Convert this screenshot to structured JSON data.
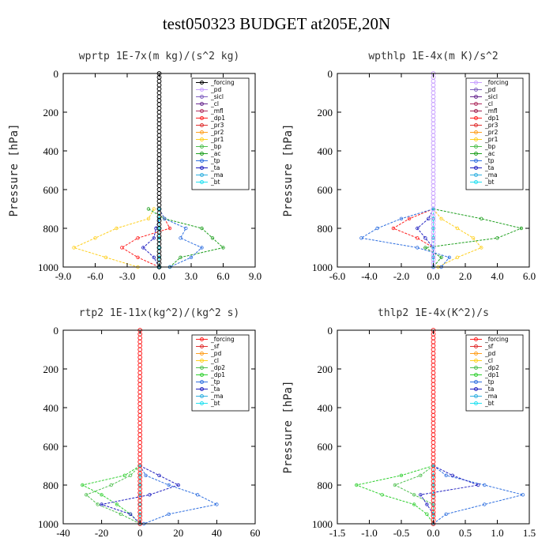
{
  "title": "test050323  BUDGET at205E,20N",
  "chart_data": [
    {
      "type": "line",
      "title": "wprtp  1E-7x(m kg)/(s^2 kg)",
      "ylabel": "Pressure [hPa]",
      "xlim": [
        -9,
        9
      ],
      "ylim": [
        1000,
        0
      ],
      "xticks": [
        -9,
        -6,
        -3,
        0,
        3,
        6,
        9
      ],
      "xtick_labels": [
        "-9.0",
        "-6.0",
        "-3.0",
        "0.0",
        "3.0",
        "6.0",
        "9.0"
      ],
      "yticks": [
        0,
        200,
        400,
        600,
        800,
        1000
      ],
      "grid": false,
      "legend_position": "top-right",
      "y": [
        700,
        750,
        800,
        850,
        900,
        950,
        1000
      ],
      "series": [
        {
          "name": "_forcing",
          "color": "#000000",
          "values": [
            0,
            0,
            0,
            0,
            0,
            0,
            0
          ]
        },
        {
          "name": "_pd",
          "color": "#c8a0ff",
          "values": [
            0,
            0,
            0,
            0,
            0,
            0,
            0
          ]
        },
        {
          "name": "_sicl",
          "color": "#8060c0",
          "values": [
            0,
            0,
            0,
            0,
            0,
            0,
            0
          ]
        },
        {
          "name": "_cl",
          "color": "#6a2a90",
          "values": [
            0,
            0,
            0,
            0,
            0,
            0,
            0
          ]
        },
        {
          "name": "_mfl",
          "color": "#b03060",
          "values": [
            0,
            0,
            0,
            0,
            0,
            0,
            0
          ]
        },
        {
          "name": "_dp1",
          "color": "#ff2020",
          "values": [
            0,
            0.5,
            1.0,
            -2.0,
            -3.5,
            -2.0,
            0
          ]
        },
        {
          "name": "_pr3",
          "color": "#e03030",
          "values": [
            0,
            0,
            0,
            0,
            0,
            0,
            0
          ]
        },
        {
          "name": "_pr2",
          "color": "#ffa020",
          "values": [
            0,
            0,
            0,
            0,
            0,
            0,
            0
          ]
        },
        {
          "name": "_pr1",
          "color": "#ffd020",
          "values": [
            -0.5,
            -1.0,
            -4.0,
            -6.0,
            -8.0,
            -5.0,
            -2.0
          ]
        },
        {
          "name": "_bp",
          "color": "#50c050",
          "values": [
            0,
            0,
            0,
            0,
            0,
            0,
            0
          ]
        },
        {
          "name": "_ac",
          "color": "#20a020",
          "values": [
            -1.0,
            0.5,
            4.0,
            5.0,
            6.0,
            2.0,
            1.0
          ]
        },
        {
          "name": "_tp",
          "color": "#3070e0",
          "values": [
            0,
            0.5,
            2.5,
            2.0,
            4.0,
            3.0,
            1.0
          ]
        },
        {
          "name": "_ta",
          "color": "#2020c0",
          "values": [
            0,
            0,
            -0.3,
            -0.5,
            -1.5,
            -0.5,
            0
          ]
        },
        {
          "name": "_ma",
          "color": "#30b0e0",
          "values": [
            0,
            0,
            0,
            0,
            0,
            0,
            0
          ]
        },
        {
          "name": "_bt",
          "color": "#20e0f0",
          "values": [
            0,
            0,
            0,
            0,
            0,
            0,
            0
          ]
        }
      ]
    },
    {
      "type": "line",
      "title": "wpthlp  1E-4x(m K)/s^2",
      "ylabel": "Pressure [hPa]",
      "xlim": [
        -6,
        6
      ],
      "ylim": [
        1000,
        0
      ],
      "xticks": [
        -6,
        -4,
        -2,
        0,
        2,
        4,
        6
      ],
      "xtick_labels": [
        "-6.0",
        "-4.0",
        "-2.0",
        "0.0",
        "2.0",
        "4.0",
        "6.0"
      ],
      "yticks": [
        0,
        200,
        400,
        600,
        800,
        1000
      ],
      "grid": false,
      "legend_position": "top-right",
      "y": [
        700,
        750,
        800,
        850,
        900,
        950,
        1000
      ],
      "series": [
        {
          "name": "_forcing",
          "color": "#c8a0ff",
          "values": [
            0,
            0,
            0,
            0,
            0,
            0,
            0
          ]
        },
        {
          "name": "_pd",
          "color": "#8060c0",
          "values": [
            0,
            0,
            0,
            0,
            0,
            0,
            0
          ]
        },
        {
          "name": "_sicl",
          "color": "#6a2a90",
          "values": [
            0,
            0,
            0,
            0,
            0,
            0,
            0
          ]
        },
        {
          "name": "_cl",
          "color": "#b03060",
          "values": [
            0,
            0,
            0,
            0,
            0,
            0,
            0
          ]
        },
        {
          "name": "_mfl",
          "color": "#a02050",
          "values": [
            0,
            0,
            0,
            0,
            0,
            0,
            0
          ]
        },
        {
          "name": "_dp1",
          "color": "#ff2020",
          "values": [
            0,
            -1.5,
            -2.5,
            -1.0,
            0,
            0,
            0
          ]
        },
        {
          "name": "_pr3",
          "color": "#e03030",
          "values": [
            0,
            0,
            0,
            0,
            0,
            0,
            0
          ]
        },
        {
          "name": "_pr2",
          "color": "#ffa020",
          "values": [
            0,
            0,
            0,
            0,
            0,
            0,
            0
          ]
        },
        {
          "name": "_pr1",
          "color": "#ffd020",
          "values": [
            0,
            0.5,
            1.5,
            2.5,
            3.0,
            1.5,
            0.3
          ]
        },
        {
          "name": "_bp",
          "color": "#50c050",
          "values": [
            0,
            0,
            0,
            0,
            0,
            0,
            0
          ]
        },
        {
          "name": "_ac",
          "color": "#20a020",
          "values": [
            0,
            3.0,
            5.5,
            4.0,
            -0.5,
            0.5,
            0
          ]
        },
        {
          "name": "_tp",
          "color": "#3070e0",
          "values": [
            0,
            -2.0,
            -3.5,
            -4.5,
            -1.0,
            1.0,
            0.5
          ]
        },
        {
          "name": "_ta",
          "color": "#2020c0",
          "values": [
            0,
            -0.3,
            -1.0,
            -0.5,
            0,
            0,
            0
          ]
        },
        {
          "name": "_ma",
          "color": "#30b0e0",
          "values": [
            0,
            0,
            0,
            0,
            0,
            0,
            0
          ]
        },
        {
          "name": "_bt",
          "color": "#20e0f0",
          "values": [
            0,
            0,
            0,
            0,
            0,
            0,
            0
          ]
        }
      ]
    },
    {
      "type": "line",
      "title": "rtp2  1E-11x(kg^2)/(kg^2 s)",
      "ylabel": "",
      "xlim": [
        -40,
        60
      ],
      "ylim": [
        1000,
        0
      ],
      "xticks": [
        -40,
        -20,
        0,
        20,
        40,
        60
      ],
      "xtick_labels": [
        "-40",
        "-20",
        "0",
        "20",
        "40",
        "60"
      ],
      "yticks": [
        0,
        200,
        400,
        600,
        800,
        1000
      ],
      "grid": false,
      "legend_position": "top-right",
      "y": [
        700,
        750,
        800,
        850,
        900,
        950,
        1000
      ],
      "series": [
        {
          "name": "_forcing",
          "color": "#ff2020",
          "values": [
            0,
            0,
            0,
            0,
            0,
            0,
            0
          ]
        },
        {
          "name": "_sf",
          "color": "#e03030",
          "values": [
            0,
            0,
            0,
            0,
            0,
            0,
            0
          ]
        },
        {
          "name": "_pd",
          "color": "#ffa020",
          "values": [
            0,
            0,
            0,
            0,
            0,
            0,
            0
          ]
        },
        {
          "name": "_cl",
          "color": "#ffd020",
          "values": [
            0,
            0,
            0,
            0,
            0,
            0,
            0
          ]
        },
        {
          "name": "_dp2",
          "color": "#50c050",
          "values": [
            0,
            -5,
            -15,
            -28,
            -22,
            -10,
            0
          ]
        },
        {
          "name": "_dp1",
          "color": "#30d030",
          "values": [
            0,
            -8,
            -30,
            -20,
            -12,
            -5,
            0
          ]
        },
        {
          "name": "_tp",
          "color": "#3070e0",
          "values": [
            0,
            3,
            15,
            30,
            40,
            15,
            2
          ]
        },
        {
          "name": "_ta",
          "color": "#2020c0",
          "values": [
            0,
            10,
            20,
            5,
            -20,
            -5,
            0
          ]
        },
        {
          "name": "_ma",
          "color": "#30b0e0",
          "values": [
            0,
            0,
            0,
            0,
            0,
            0,
            0
          ]
        },
        {
          "name": "_bt",
          "color": "#20e0f0",
          "values": [
            0,
            0,
            0,
            0,
            0,
            0,
            0
          ]
        }
      ]
    },
    {
      "type": "line",
      "title": "thlp2  1E-4x(K^2)/s",
      "ylabel": "Pressure [hPa]",
      "xlim": [
        -1.5,
        1.5
      ],
      "ylim": [
        1000,
        0
      ],
      "xticks": [
        -1.5,
        -1.0,
        -0.5,
        0,
        0.5,
        1.0,
        1.5
      ],
      "xtick_labels": [
        "-1.5",
        "-1.0",
        "-0.5",
        "0.0",
        "0.5",
        "1.0",
        "1.5"
      ],
      "yticks": [
        0,
        200,
        400,
        600,
        800,
        1000
      ],
      "grid": false,
      "legend_position": "top-right",
      "y": [
        700,
        750,
        800,
        850,
        900,
        950,
        1000
      ],
      "series": [
        {
          "name": "_forcing",
          "color": "#ff2020",
          "values": [
            0,
            0,
            0,
            0,
            0,
            0,
            0
          ]
        },
        {
          "name": "_sf",
          "color": "#e03030",
          "values": [
            0,
            0,
            0,
            0,
            0,
            0,
            0
          ]
        },
        {
          "name": "_pd",
          "color": "#ffa020",
          "values": [
            0,
            0,
            0,
            0,
            0,
            0,
            0
          ]
        },
        {
          "name": "_cl",
          "color": "#ffd020",
          "values": [
            0,
            0,
            0,
            0,
            0,
            0,
            0
          ]
        },
        {
          "name": "_dp2",
          "color": "#50c050",
          "values": [
            0,
            -0.2,
            -0.6,
            -0.3,
            0,
            0,
            0
          ]
        },
        {
          "name": "_dp1",
          "color": "#30d030",
          "values": [
            0,
            -0.5,
            -1.2,
            -0.8,
            -0.3,
            -0.1,
            0
          ]
        },
        {
          "name": "_tp",
          "color": "#3070e0",
          "values": [
            0,
            0.2,
            0.8,
            1.4,
            0.8,
            0.2,
            0
          ]
        },
        {
          "name": "_ta",
          "color": "#2020c0",
          "values": [
            0,
            0.3,
            0.7,
            -0.2,
            -0.1,
            0,
            0
          ]
        },
        {
          "name": "_ma",
          "color": "#30b0e0",
          "values": [
            0,
            0,
            0,
            0,
            0,
            0,
            0
          ]
        },
        {
          "name": "_bt",
          "color": "#20e0f0",
          "values": [
            0,
            0,
            0,
            0,
            0,
            0,
            0
          ]
        }
      ]
    }
  ]
}
